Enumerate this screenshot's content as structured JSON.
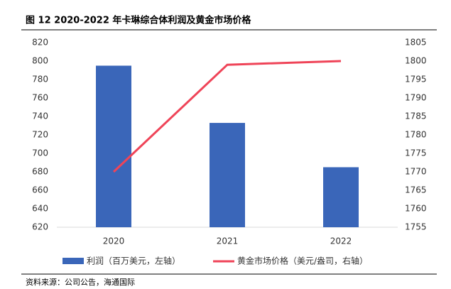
{
  "chart_data": {
    "type": "bar-line",
    "title": "图 12 2020-2022 年卡琳综合体利润及黄金市场价格",
    "source": "资料来源：公司公告，海通国际",
    "categories": [
      "2020",
      "2021",
      "2022"
    ],
    "series": [
      {
        "name": "利润（百万美元，左轴）",
        "type": "bar",
        "color": "#3a66b9",
        "values": [
          795,
          733,
          685
        ]
      },
      {
        "name": "黄金市场价格（美元/盎司，右轴）",
        "type": "line",
        "axis": "y2",
        "color": "#ef4458",
        "values": [
          1770,
          1799,
          1800
        ]
      }
    ],
    "ylim": [
      620,
      820
    ],
    "yticks": [
      620,
      640,
      660,
      680,
      700,
      720,
      740,
      760,
      780,
      800,
      820
    ],
    "y2lim": [
      1755,
      1805
    ],
    "y2ticks": [
      1755,
      1760,
      1765,
      1770,
      1775,
      1780,
      1785,
      1790,
      1795,
      1800,
      1805
    ]
  }
}
